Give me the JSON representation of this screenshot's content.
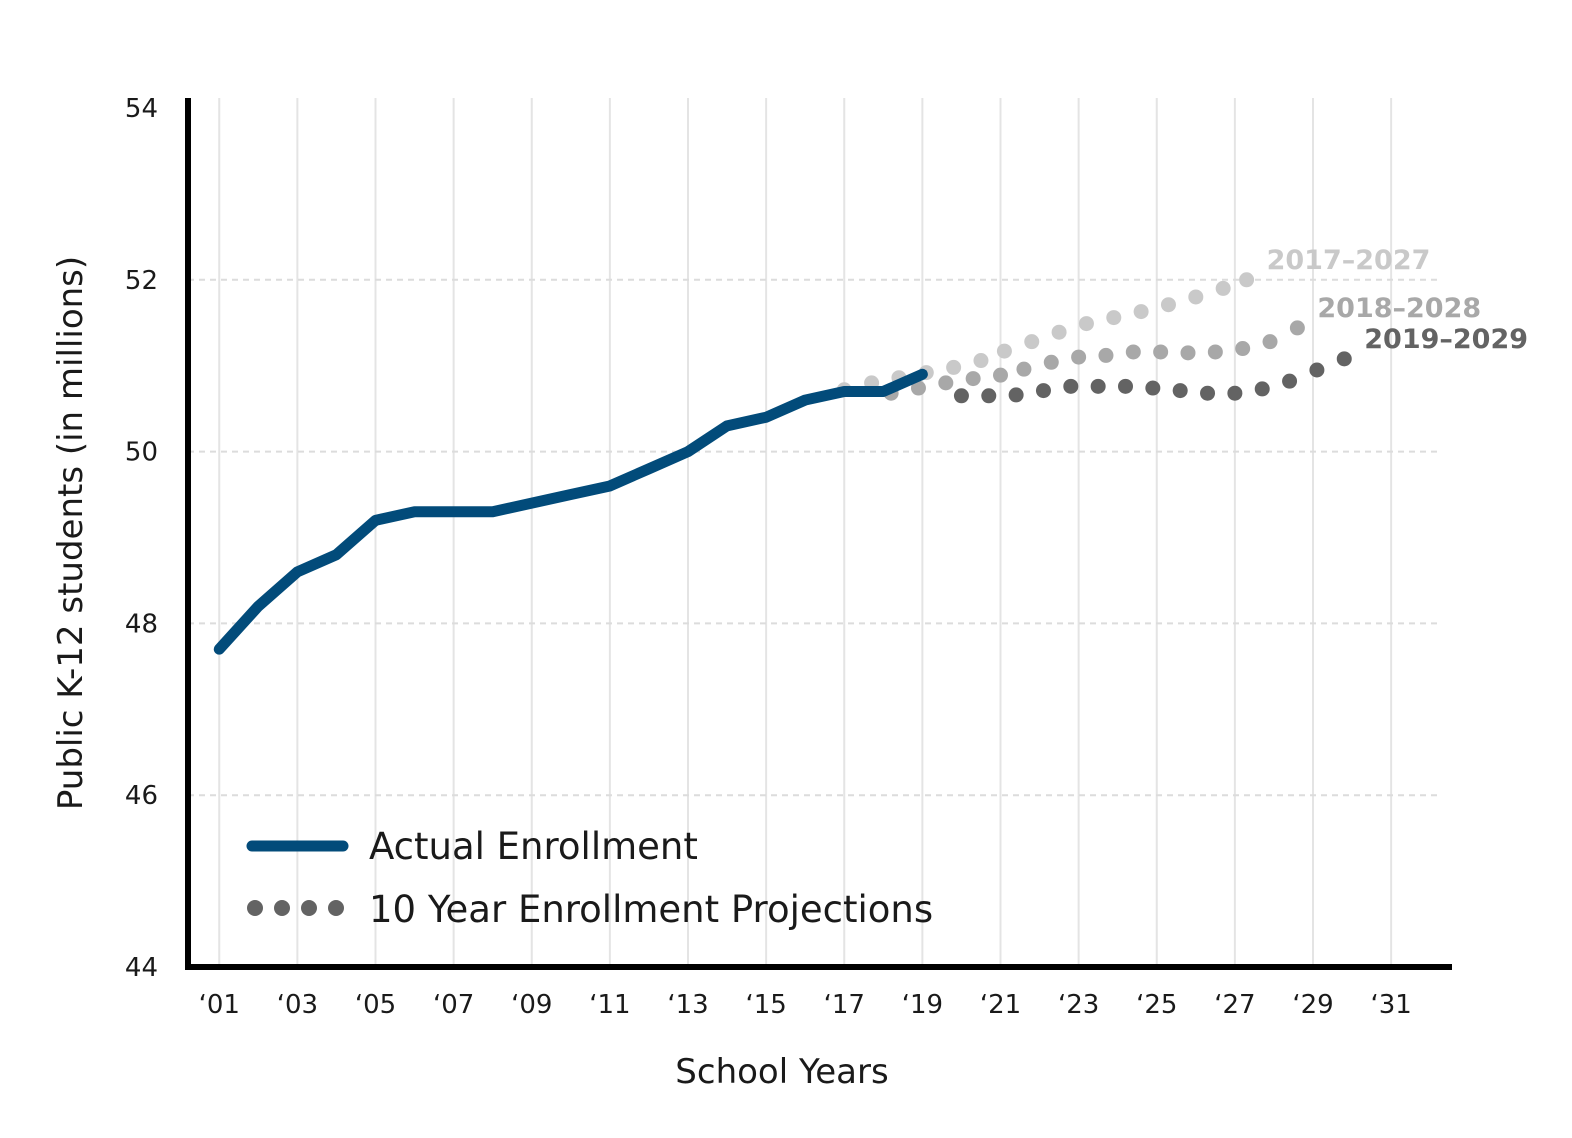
{
  "chart_data": {
    "type": "line",
    "title": "",
    "xlabel": "School Years",
    "ylabel": "Public K-12 students (in millions)",
    "xlim": [
      2000.2,
      2032.2
    ],
    "ylim": [
      44,
      54
    ],
    "x_ticks": [
      2001,
      2003,
      2005,
      2007,
      2009,
      2011,
      2013,
      2015,
      2017,
      2019,
      2021,
      2023,
      2025,
      2027,
      2029,
      2031
    ],
    "x_tick_labels": [
      "‘01",
      "‘03",
      "‘05",
      "‘07",
      "‘09",
      "‘11",
      "‘13",
      "‘15",
      "‘17",
      "‘19",
      "‘21",
      "‘23",
      "‘25",
      "‘27",
      "‘29",
      "‘31"
    ],
    "y_ticks": [
      44,
      46,
      48,
      50,
      52,
      54
    ],
    "y_tick_labels": [
      "44",
      "46",
      "48",
      "50",
      "52",
      "54"
    ],
    "grid": {
      "vertical": true,
      "horizontal_dashed": true
    },
    "legend": {
      "placement": "bottom-left",
      "entries": [
        {
          "label": "Actual Enrollment",
          "style": "solid"
        },
        {
          "label": "10 Year Enrollment Projections",
          "style": "dotted"
        }
      ]
    },
    "series": [
      {
        "key": "actual",
        "style": "solid",
        "color": "#024b7a",
        "x": [
          2001,
          2002,
          2003,
          2004,
          2005,
          2006,
          2007,
          2008,
          2009,
          2010,
          2011,
          2012,
          2013,
          2014,
          2015,
          2016,
          2017,
          2018,
          2019
        ],
        "y": [
          47.7,
          48.2,
          48.6,
          48.8,
          49.2,
          49.3,
          49.3,
          49.3,
          49.4,
          49.5,
          49.6,
          49.8,
          50.0,
          50.3,
          50.4,
          50.6,
          50.7,
          50.7,
          50.9
        ]
      },
      {
        "name": "2017–2027",
        "style": "dotted",
        "color": "#c9c9c9",
        "x": [
          2017.0,
          2017.7,
          2018.4,
          2019.1,
          2019.8,
          2020.5,
          2021.1,
          2021.8,
          2022.5,
          2023.2,
          2023.9,
          2024.6,
          2025.3,
          2026.0,
          2026.7,
          2027.3
        ],
        "y": [
          50.72,
          50.8,
          50.86,
          50.92,
          50.98,
          51.06,
          51.17,
          51.28,
          51.39,
          51.49,
          51.56,
          51.63,
          51.71,
          51.8,
          51.9,
          52.0
        ]
      },
      {
        "name": "2018–2028",
        "style": "dotted",
        "color": "#a8a8a8",
        "x": [
          2018.2,
          2018.9,
          2019.6,
          2020.3,
          2021.0,
          2021.6,
          2022.3,
          2023.0,
          2023.7,
          2024.4,
          2025.1,
          2025.8,
          2026.5,
          2027.2,
          2027.9,
          2028.6
        ],
        "y": [
          50.68,
          50.74,
          50.8,
          50.85,
          50.89,
          50.96,
          51.04,
          51.1,
          51.12,
          51.16,
          51.16,
          51.15,
          51.16,
          51.2,
          51.28,
          51.44
        ]
      },
      {
        "name": "2019–2029",
        "style": "dotted",
        "color": "#636363",
        "x": [
          2020.0,
          2020.7,
          2021.4,
          2022.1,
          2022.8,
          2023.5,
          2024.2,
          2024.9,
          2025.6,
          2026.3,
          2027.0,
          2027.7,
          2028.4,
          2029.1,
          2029.8
        ],
        "y": [
          50.65,
          50.65,
          50.66,
          50.71,
          50.76,
          50.76,
          50.76,
          50.74,
          50.71,
          50.68,
          50.68,
          50.73,
          50.82,
          50.95,
          51.08
        ]
      }
    ]
  }
}
